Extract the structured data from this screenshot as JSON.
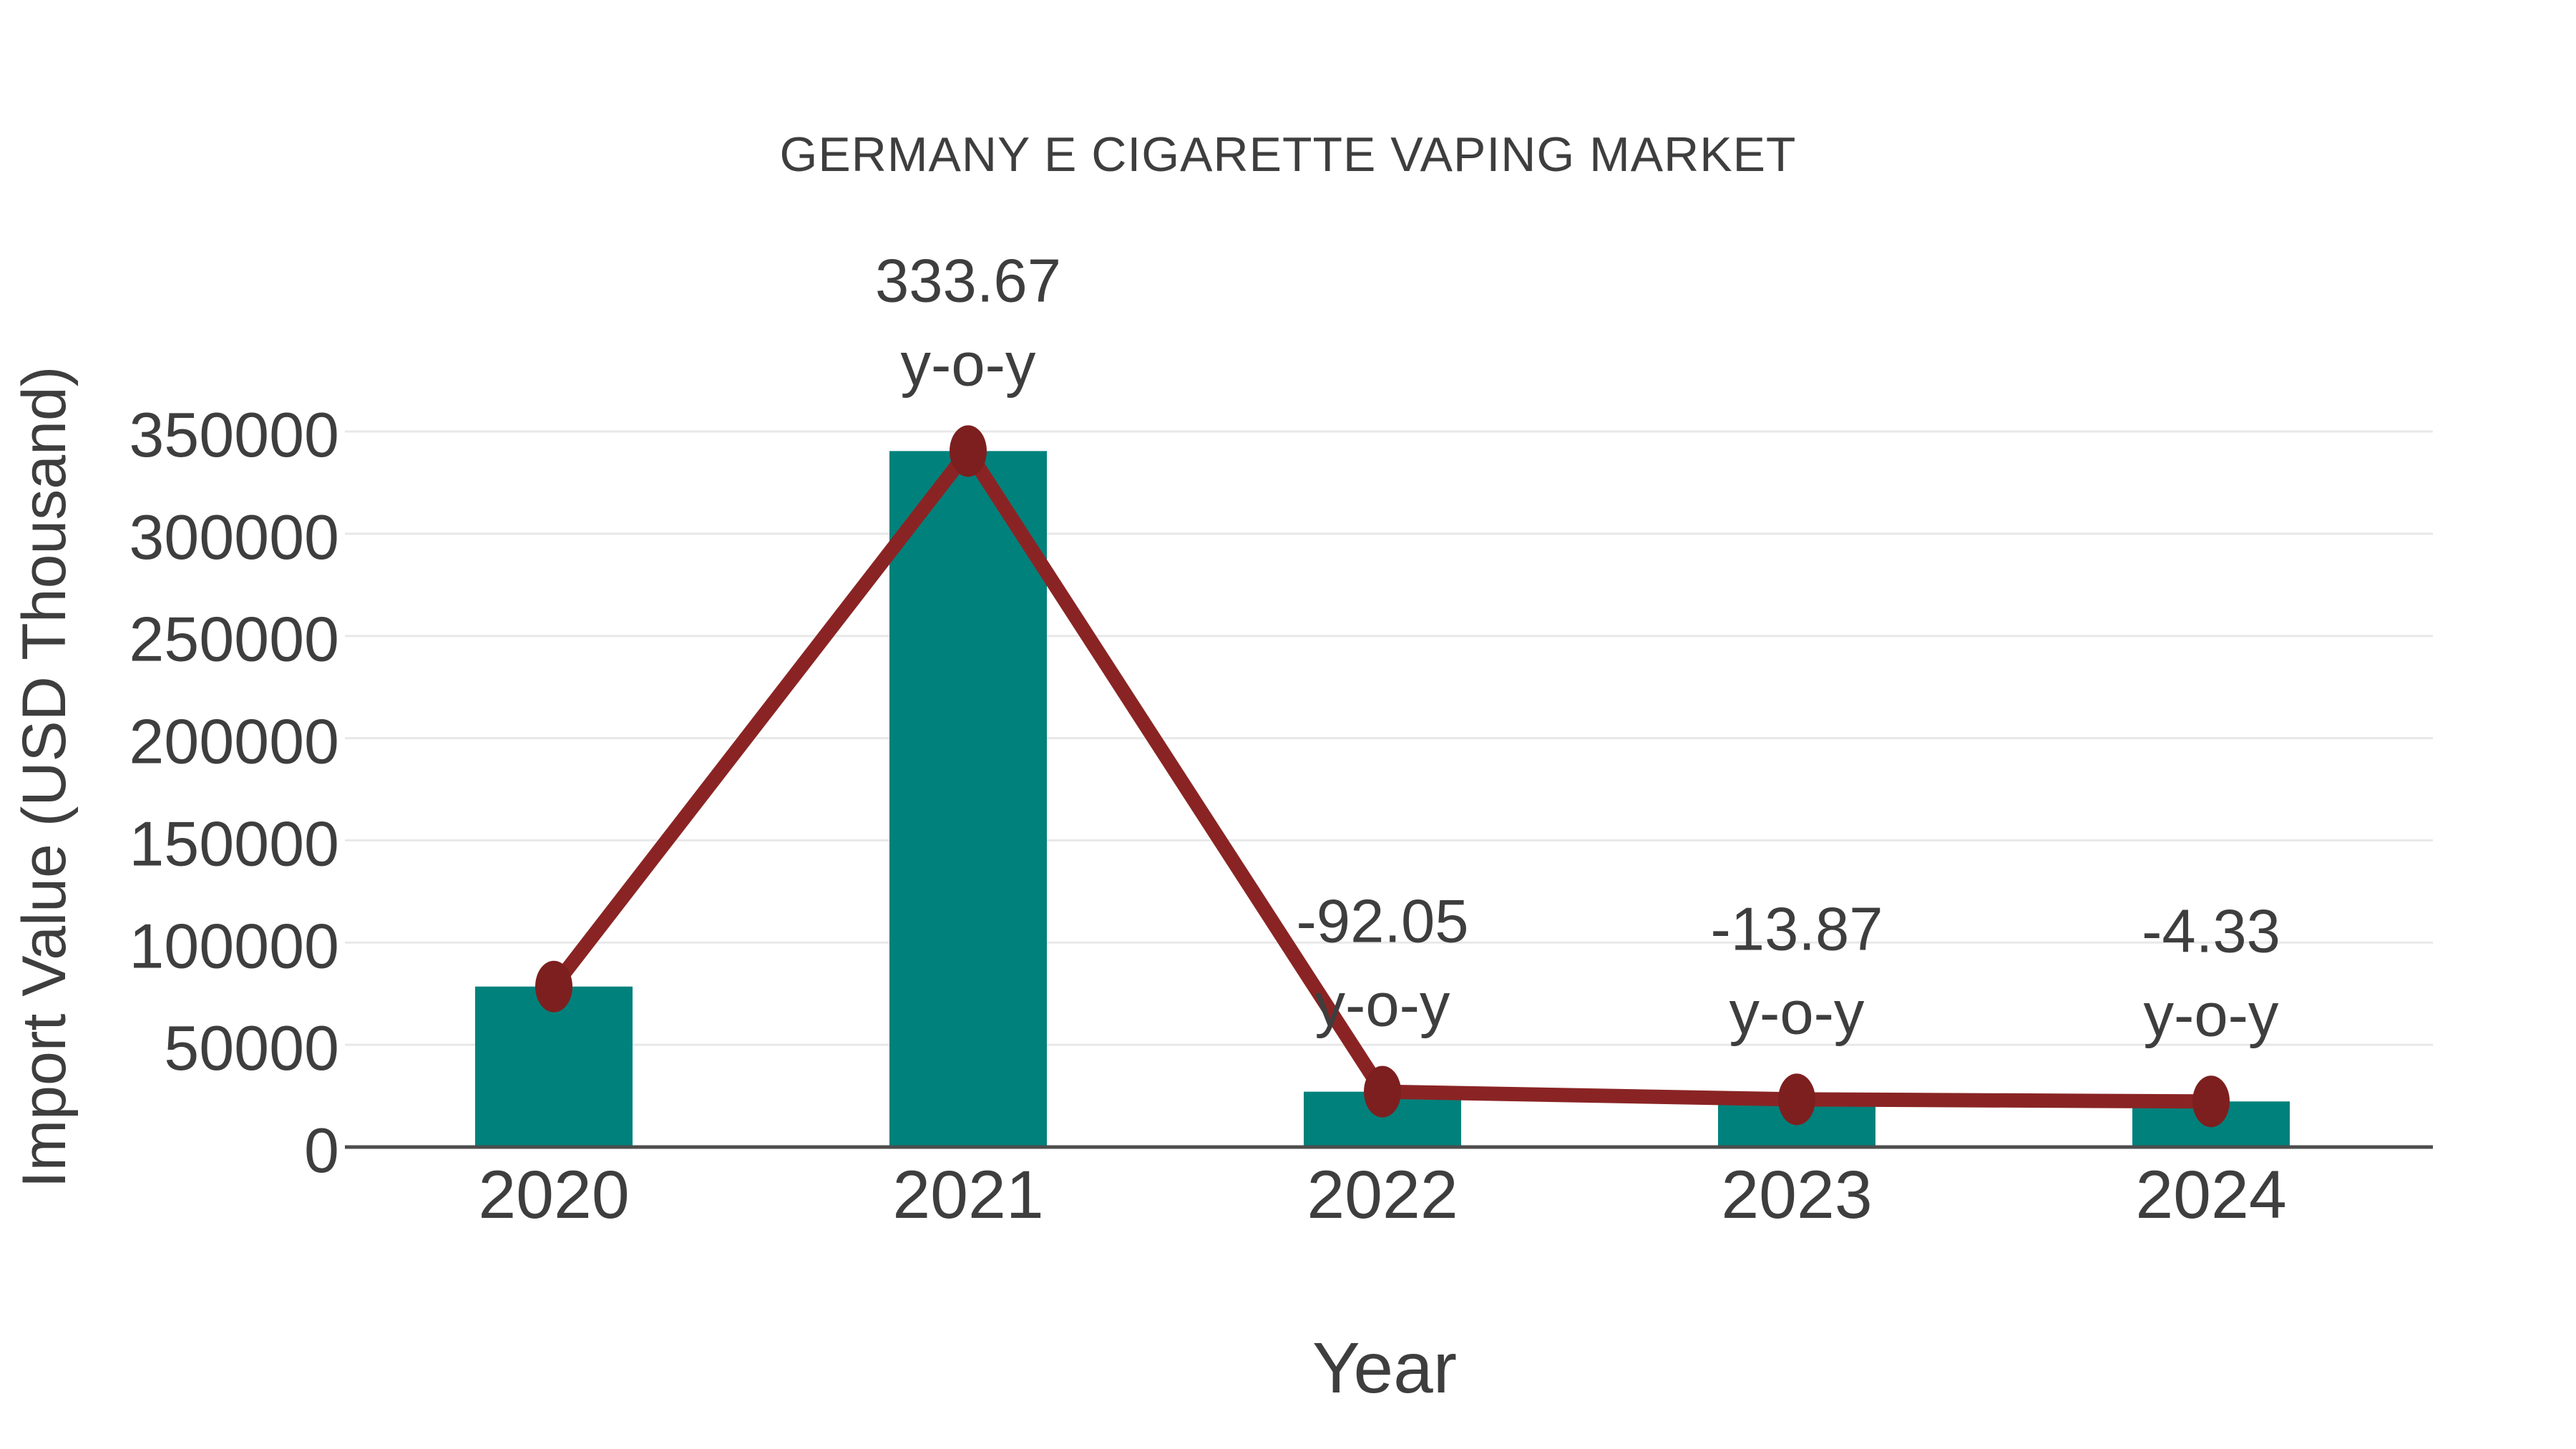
{
  "figure": {
    "background": "#FFFFFF"
  },
  "chart_data": {
    "type": "bar",
    "title": "GERMANY E CIGARETTE VAPING MARKET",
    "xlabel": "Year",
    "ylabel": "Import Value (USD Thousand)",
    "categories": [
      "2020",
      "2021",
      "2022",
      "2023",
      "2024"
    ],
    "series": [
      {
        "name": "Import Value (USD Thousand)",
        "type": "bar",
        "color": "#00817C",
        "values": [
          78500,
          340430,
          27064,
          23310,
          22300
        ]
      },
      {
        "name": "y-o-y trend",
        "type": "line",
        "color": "#8A2424",
        "marker_color": "#7D1F1F",
        "values": [
          78500,
          340430,
          27064,
          23310,
          22300
        ]
      }
    ],
    "y_o_y_percent": [
      null,
      333.67,
      -92.05,
      -13.87,
      -4.33
    ],
    "annotations": [
      {
        "category": "2021",
        "lines": [
          "333.67",
          "y-o-y"
        ]
      },
      {
        "category": "2022",
        "lines": [
          "-92.05",
          "y-o-y"
        ]
      },
      {
        "category": "2023",
        "lines": [
          "-13.87",
          "y-o-y"
        ]
      },
      {
        "category": "2024",
        "lines": [
          "-4.33",
          "y-o-y"
        ]
      }
    ],
    "ylim": [
      0,
      350000
    ],
    "yticks": [
      0,
      50000,
      100000,
      150000,
      200000,
      250000,
      300000,
      350000
    ],
    "grid": true,
    "legend_position": "none",
    "colors": {
      "bar": "#00817C",
      "line": "#8A2424",
      "marker": "#7D1F1F",
      "gridline": "#E8E8E8",
      "axis_line": "#4D4D4D",
      "text": "#3E3E3E",
      "background": "#FFFFFF"
    }
  }
}
